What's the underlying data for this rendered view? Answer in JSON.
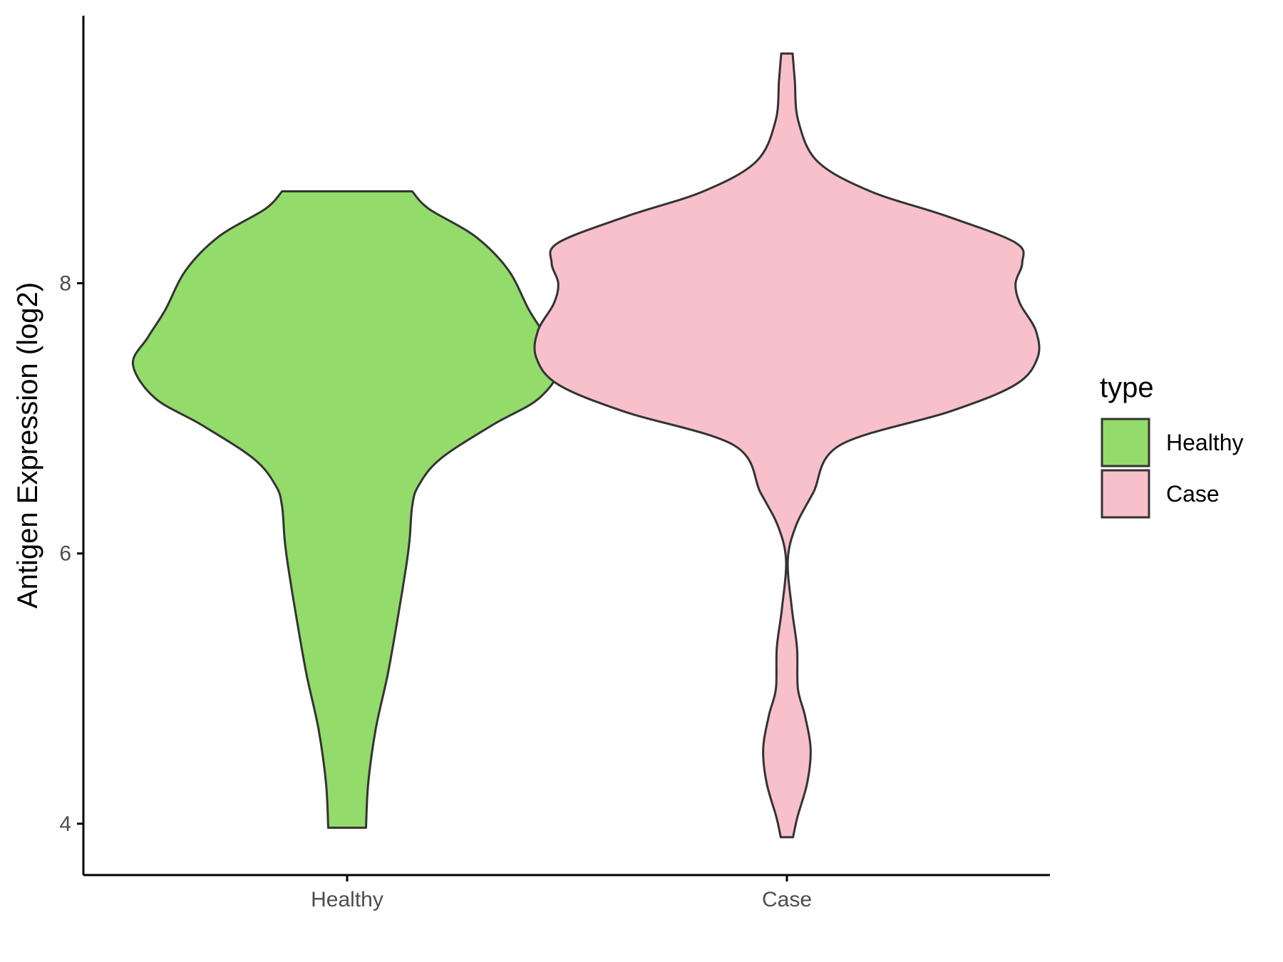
{
  "chart_data": {
    "type": "violin",
    "title": "",
    "xlabel": "",
    "ylabel": "Antigen Expression (log2)",
    "ylim": [
      3.62,
      9.98
    ],
    "yticks": [
      4,
      6,
      8
    ],
    "categories": [
      "Healthy",
      "Case"
    ],
    "legend": {
      "title": "type",
      "position": "right",
      "entries": [
        "Healthy",
        "Case"
      ]
    },
    "grid": false,
    "series": [
      {
        "name": "Healthy",
        "color": "#93DB6A",
        "outline": "#333333",
        "min": 3.97,
        "max": 8.68,
        "half_width_profile": [
          [
            3.97,
            0.043
          ],
          [
            4.3,
            0.048
          ],
          [
            4.7,
            0.065
          ],
          [
            5.1,
            0.092
          ],
          [
            5.5,
            0.114
          ],
          [
            5.9,
            0.134
          ],
          [
            6.1,
            0.142
          ],
          [
            6.35,
            0.148
          ],
          [
            6.5,
            0.162
          ],
          [
            6.7,
            0.212
          ],
          [
            6.95,
            0.33
          ],
          [
            7.15,
            0.437
          ],
          [
            7.4,
            0.487
          ],
          [
            7.6,
            0.453
          ],
          [
            7.8,
            0.414
          ],
          [
            8.1,
            0.366
          ],
          [
            8.35,
            0.29
          ],
          [
            8.55,
            0.186
          ],
          [
            8.68,
            0.148
          ]
        ]
      },
      {
        "name": "Case",
        "color": "#F7C0CB",
        "outline": "#333333",
        "min": 3.9,
        "max": 9.7,
        "half_width_profile": [
          [
            3.9,
            0.014
          ],
          [
            4.05,
            0.024
          ],
          [
            4.3,
            0.046
          ],
          [
            4.55,
            0.054
          ],
          [
            4.8,
            0.041
          ],
          [
            5.0,
            0.025
          ],
          [
            5.3,
            0.023
          ],
          [
            5.6,
            0.011
          ],
          [
            5.95,
            0.002
          ],
          [
            6.2,
            0.02
          ],
          [
            6.45,
            0.06
          ],
          [
            6.8,
            0.12
          ],
          [
            7.05,
            0.37
          ],
          [
            7.25,
            0.52
          ],
          [
            7.45,
            0.57
          ],
          [
            7.65,
            0.566
          ],
          [
            7.85,
            0.53
          ],
          [
            8.0,
            0.52
          ],
          [
            8.15,
            0.535
          ],
          [
            8.3,
            0.52
          ],
          [
            8.5,
            0.36
          ],
          [
            8.68,
            0.19
          ],
          [
            8.9,
            0.07
          ],
          [
            9.2,
            0.026
          ],
          [
            9.5,
            0.018
          ],
          [
            9.7,
            0.013
          ]
        ]
      }
    ]
  }
}
